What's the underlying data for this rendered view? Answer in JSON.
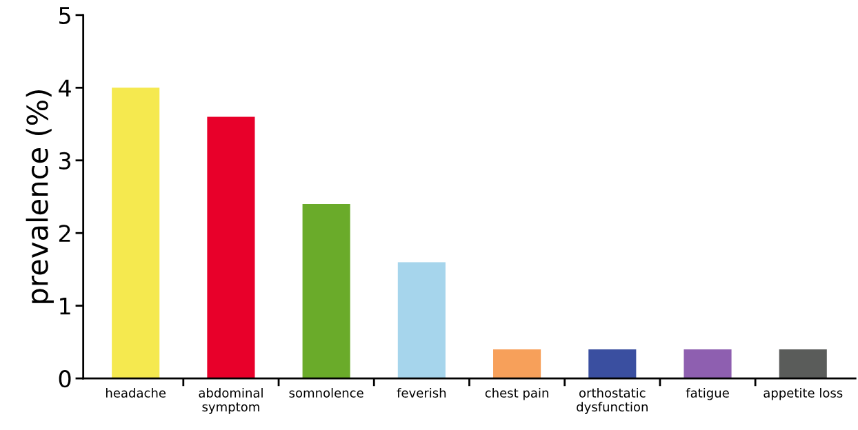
{
  "chart_data": {
    "type": "bar",
    "ylabel": "prevalence (%)",
    "categories": [
      "headache",
      "abdominal\nsymptom",
      "somnolence",
      "feverish",
      "chest pain",
      "orthostatic\ndysfunction",
      "fatigue",
      "appetite loss"
    ],
    "values": [
      4.0,
      3.6,
      2.4,
      1.6,
      0.4,
      0.4,
      0.4,
      0.4
    ],
    "colors": [
      "#f5e94f",
      "#e8002a",
      "#6aab2a",
      "#a6d5ec",
      "#f7a05a",
      "#3a4fa0",
      "#8e5fb0",
      "#5a5c5a"
    ],
    "ylim": [
      0,
      5
    ],
    "yticks": [
      0,
      1,
      2,
      3,
      4,
      5
    ],
    "grid": false,
    "legend": false
  }
}
